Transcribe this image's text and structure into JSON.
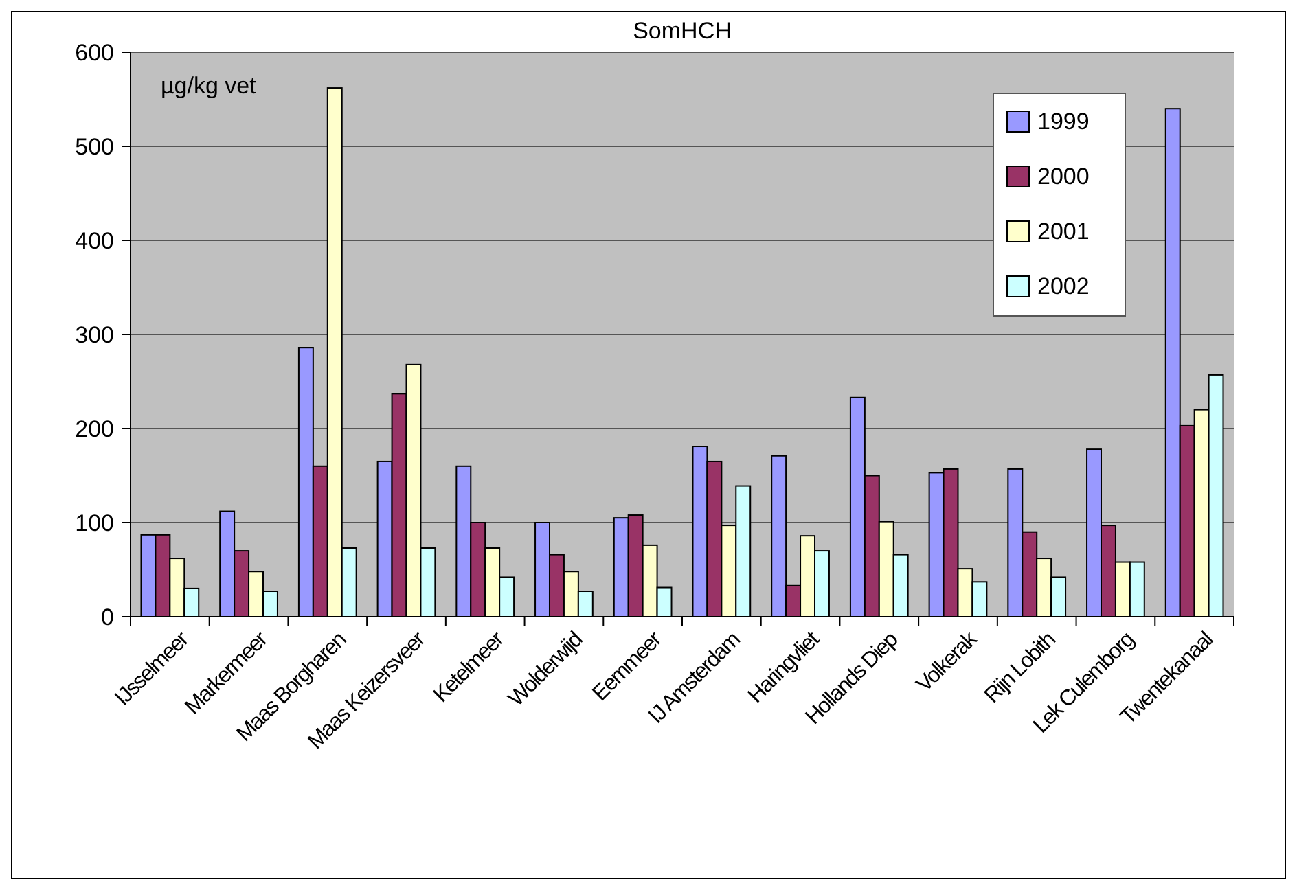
{
  "chart_data": {
    "type": "bar",
    "title": "SomHCH",
    "ylabel": "µg/kg vet",
    "categories": [
      "IJsselmeer",
      "Markermeer",
      "Maas Borgharen",
      "Maas Keizersveer",
      "Ketelmeer",
      "Wolderwijd",
      "Eemmeer",
      "IJ Amsterdam",
      "Haringvliet",
      "Hollands Diep",
      "Volkerak",
      "Rijn Lobith",
      "Lek Culemborg",
      "Twentekanaal"
    ],
    "series": [
      {
        "name": "1999",
        "color": "#9999ff",
        "values": [
          87,
          112,
          286,
          165,
          160,
          100,
          105,
          181,
          171,
          233,
          153,
          157,
          178,
          540
        ]
      },
      {
        "name": "2000",
        "color": "#993366",
        "values": [
          87,
          70,
          160,
          237,
          100,
          66,
          108,
          165,
          33,
          150,
          157,
          90,
          97,
          203
        ]
      },
      {
        "name": "2001",
        "color": "#ffffcc",
        "values": [
          62,
          48,
          562,
          268,
          73,
          48,
          76,
          97,
          86,
          101,
          51,
          62,
          58,
          220
        ]
      },
      {
        "name": "2002",
        "color": "#ccffff",
        "values": [
          30,
          27,
          73,
          73,
          42,
          27,
          31,
          139,
          70,
          66,
          37,
          42,
          58,
          257
        ]
      }
    ],
    "ylim": [
      0,
      600
    ],
    "yticks": [
      0,
      100,
      200,
      300,
      400,
      500,
      600
    ],
    "grid": "y",
    "legend": "top right"
  }
}
